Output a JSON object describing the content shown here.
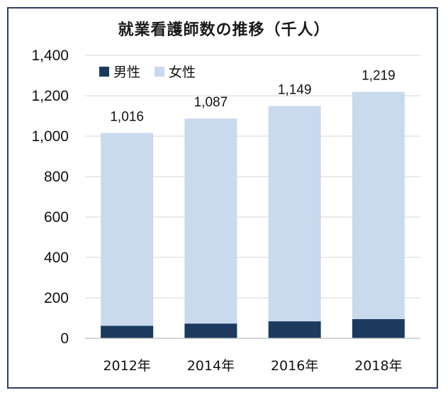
{
  "chart_data": {
    "type": "bar",
    "stacked": true,
    "title": "就業看護師数の推移（千人）",
    "categories": [
      "2012年",
      "2014年",
      "2016年",
      "2018年"
    ],
    "series": [
      {
        "name": "男性",
        "color": "#1b3a5e",
        "values": [
          62,
          73,
          84,
          95
        ]
      },
      {
        "name": "女性",
        "color": "#c9d9ee",
        "values": [
          954,
          1014,
          1065,
          1124
        ]
      }
    ],
    "totals": [
      1016,
      1087,
      1149,
      1219
    ],
    "total_labels": [
      "1,016",
      "1,087",
      "1,149",
      "1,219"
    ],
    "ylim": [
      0,
      1400
    ],
    "yticks": [
      0,
      200,
      400,
      600,
      800,
      1000,
      1200,
      1400
    ],
    "ytick_labels": [
      "0",
      "200",
      "400",
      "600",
      "800",
      "1,000",
      "1,200",
      "1,400"
    ],
    "xlabel": "",
    "ylabel": "",
    "grid": true,
    "legend": "top-left"
  }
}
